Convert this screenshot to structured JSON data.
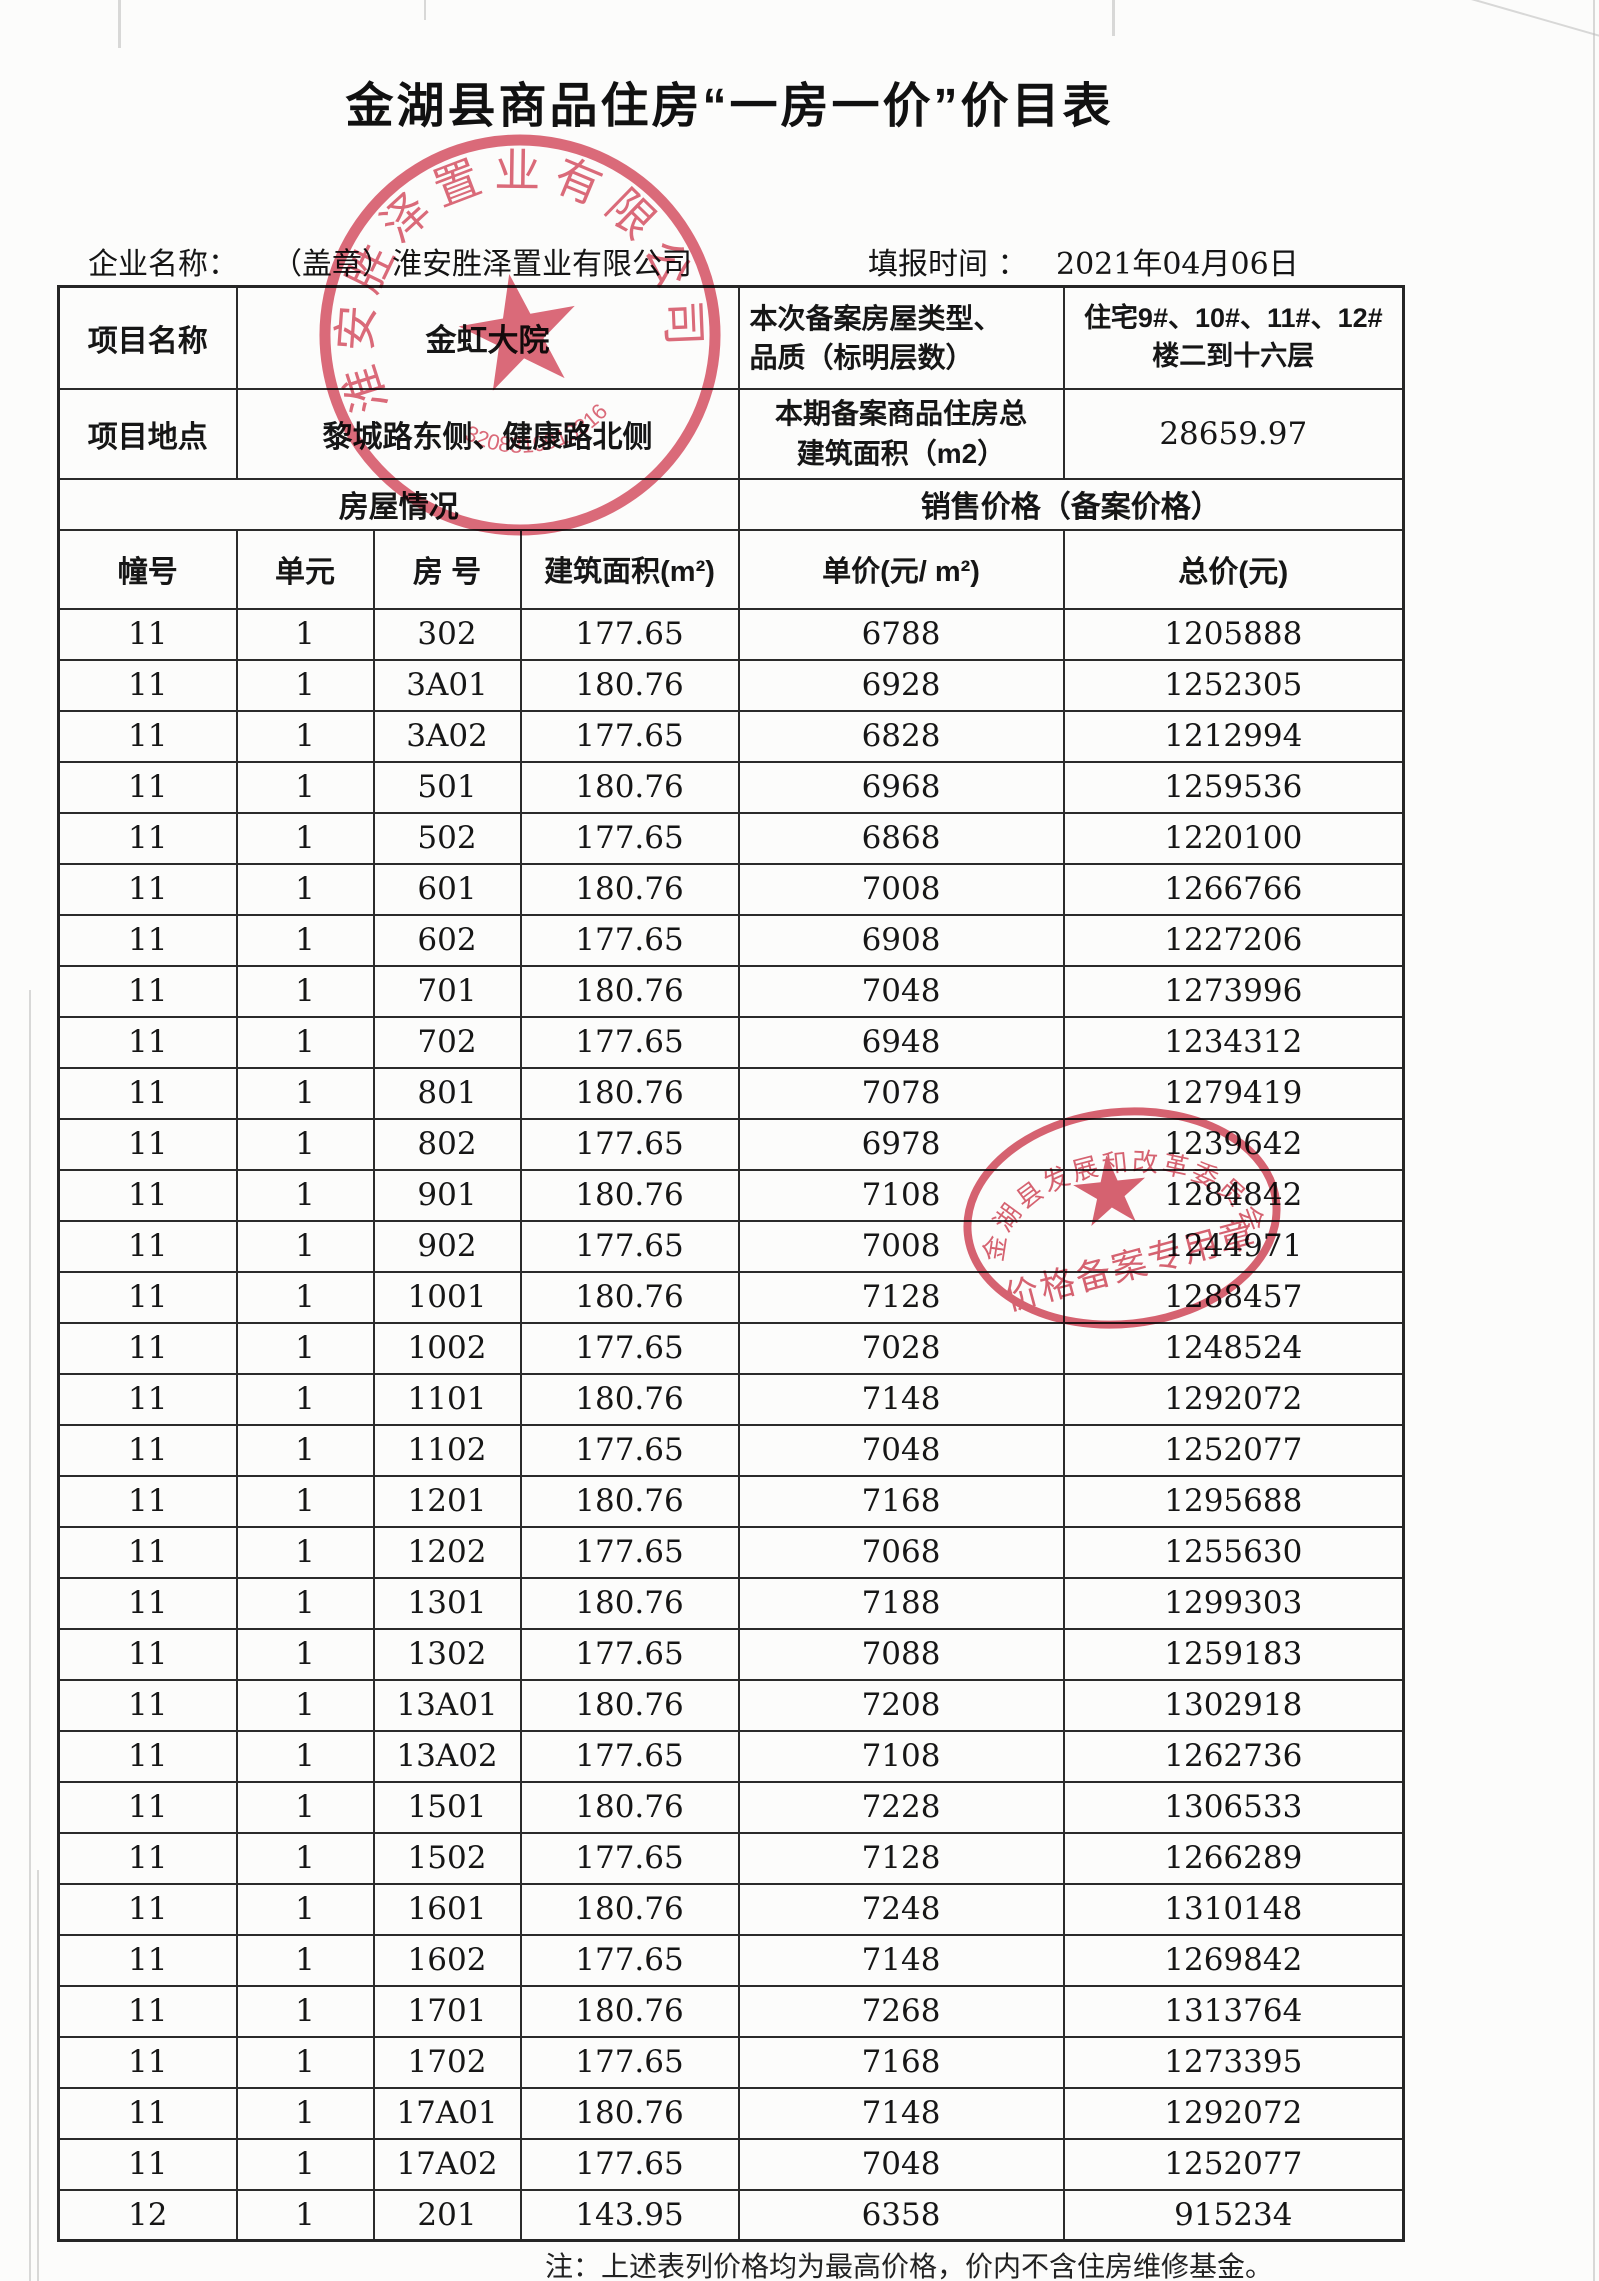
{
  "page": {
    "title": "金湖县商品住房“一房一价”价目表",
    "company_label": "企业名称：",
    "company_value": "（盖章）淮安胜泽置业有限公司",
    "date_label": "填报时间 ：",
    "date_value": "2021年04月06日",
    "footer_note": "注：上述表列价格均为最高价格，价内不含住房维修基金。"
  },
  "info": {
    "project_name_label": "项目名称",
    "project_name_value": "金虹大院",
    "house_type_label": "本次备案房屋类型、\n品质（标明层数）",
    "house_type_value": "住宅9#、10#、11#、12#\n楼二到十六层",
    "location_label": "项目地点",
    "location_value": "黎城路东侧、健康路北侧",
    "total_area_label": "本期备案商品住房总\n建筑面积（m2）",
    "total_area_value": "28659.97",
    "housing_section_title": "房屋情况",
    "price_section_title": "销售价格（备案价格）"
  },
  "table": {
    "columns": [
      "幢号",
      "单元",
      "房 号",
      "建筑面积(m²)",
      "单价(元/ m²)",
      "总价(元)"
    ],
    "rows": [
      [
        "11",
        "1",
        "302",
        "177.65",
        "6788",
        "1205888"
      ],
      [
        "11",
        "1",
        "3A01",
        "180.76",
        "6928",
        "1252305"
      ],
      [
        "11",
        "1",
        "3A02",
        "177.65",
        "6828",
        "1212994"
      ],
      [
        "11",
        "1",
        "501",
        "180.76",
        "6968",
        "1259536"
      ],
      [
        "11",
        "1",
        "502",
        "177.65",
        "6868",
        "1220100"
      ],
      [
        "11",
        "1",
        "601",
        "180.76",
        "7008",
        "1266766"
      ],
      [
        "11",
        "1",
        "602",
        "177.65",
        "6908",
        "1227206"
      ],
      [
        "11",
        "1",
        "701",
        "180.76",
        "7048",
        "1273996"
      ],
      [
        "11",
        "1",
        "702",
        "177.65",
        "6948",
        "1234312"
      ],
      [
        "11",
        "1",
        "801",
        "180.76",
        "7078",
        "1279419"
      ],
      [
        "11",
        "1",
        "802",
        "177.65",
        "6978",
        "1239642"
      ],
      [
        "11",
        "1",
        "901",
        "180.76",
        "7108",
        "1284842"
      ],
      [
        "11",
        "1",
        "902",
        "177.65",
        "7008",
        "1244971"
      ],
      [
        "11",
        "1",
        "1001",
        "180.76",
        "7128",
        "1288457"
      ],
      [
        "11",
        "1",
        "1002",
        "177.65",
        "7028",
        "1248524"
      ],
      [
        "11",
        "1",
        "1101",
        "180.76",
        "7148",
        "1292072"
      ],
      [
        "11",
        "1",
        "1102",
        "177.65",
        "7048",
        "1252077"
      ],
      [
        "11",
        "1",
        "1201",
        "180.76",
        "7168",
        "1295688"
      ],
      [
        "11",
        "1",
        "1202",
        "177.65",
        "7068",
        "1255630"
      ],
      [
        "11",
        "1",
        "1301",
        "180.76",
        "7188",
        "1299303"
      ],
      [
        "11",
        "1",
        "1302",
        "177.65",
        "7088",
        "1259183"
      ],
      [
        "11",
        "1",
        "13A01",
        "180.76",
        "7208",
        "1302918"
      ],
      [
        "11",
        "1",
        "13A02",
        "177.65",
        "7108",
        "1262736"
      ],
      [
        "11",
        "1",
        "1501",
        "180.76",
        "7228",
        "1306533"
      ],
      [
        "11",
        "1",
        "1502",
        "177.65",
        "7128",
        "1266289"
      ],
      [
        "11",
        "1",
        "1601",
        "180.76",
        "7248",
        "1310148"
      ],
      [
        "11",
        "1",
        "1602",
        "177.65",
        "7148",
        "1269842"
      ],
      [
        "11",
        "1",
        "1701",
        "180.76",
        "7268",
        "1313764"
      ],
      [
        "11",
        "1",
        "1702",
        "177.65",
        "7168",
        "1273395"
      ],
      [
        "11",
        "1",
        "17A01",
        "180.76",
        "7148",
        "1292072"
      ],
      [
        "11",
        "1",
        "17A02",
        "177.65",
        "7048",
        "1252077"
      ],
      [
        "12",
        "1",
        "201",
        "143.95",
        "6358",
        "915234"
      ]
    ]
  },
  "stamps": {
    "company_seal": {
      "ring_text": "淮安胜泽置业有限公司",
      "code": "3208310913316",
      "color": "#d5465a"
    },
    "approval_seal": {
      "ring_text": "金湖县发展和改革委员会",
      "bottom_text": "价格备案专用章",
      "color": "#cf3b4f"
    }
  }
}
